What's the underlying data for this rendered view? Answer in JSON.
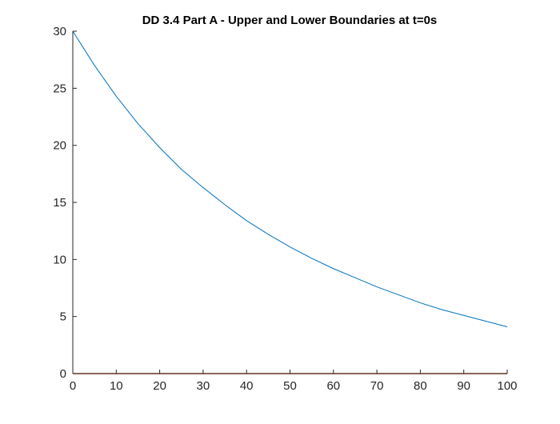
{
  "chart_data": {
    "type": "line",
    "title": "DD 3.4 Part A - Upper and Lower Boundaries at t=0s",
    "xlabel": "",
    "ylabel": "",
    "xlim": [
      0,
      100
    ],
    "ylim": [
      0,
      30
    ],
    "xticks": [
      "0",
      "10",
      "20",
      "30",
      "40",
      "50",
      "60",
      "70",
      "80",
      "90",
      "100"
    ],
    "yticks": [
      "0",
      "5",
      "10",
      "15",
      "20",
      "25",
      "30"
    ],
    "grid": false,
    "legend": "none",
    "series": [
      {
        "color": "#0072BD",
        "x": [
          0,
          5,
          10,
          15,
          20,
          25,
          30,
          35,
          40,
          45,
          50,
          55,
          60,
          65,
          70,
          75,
          80,
          85,
          90,
          95,
          100
        ],
        "y": [
          30.0,
          27.0,
          24.3,
          21.9,
          19.8,
          17.9,
          16.3,
          14.8,
          13.4,
          12.2,
          11.1,
          10.1,
          9.2,
          8.4,
          7.6,
          6.9,
          6.2,
          5.6,
          5.1,
          4.6,
          4.1
        ]
      },
      {
        "color": "#D95319",
        "x": [
          0,
          100
        ],
        "y": [
          0,
          0
        ]
      }
    ]
  }
}
